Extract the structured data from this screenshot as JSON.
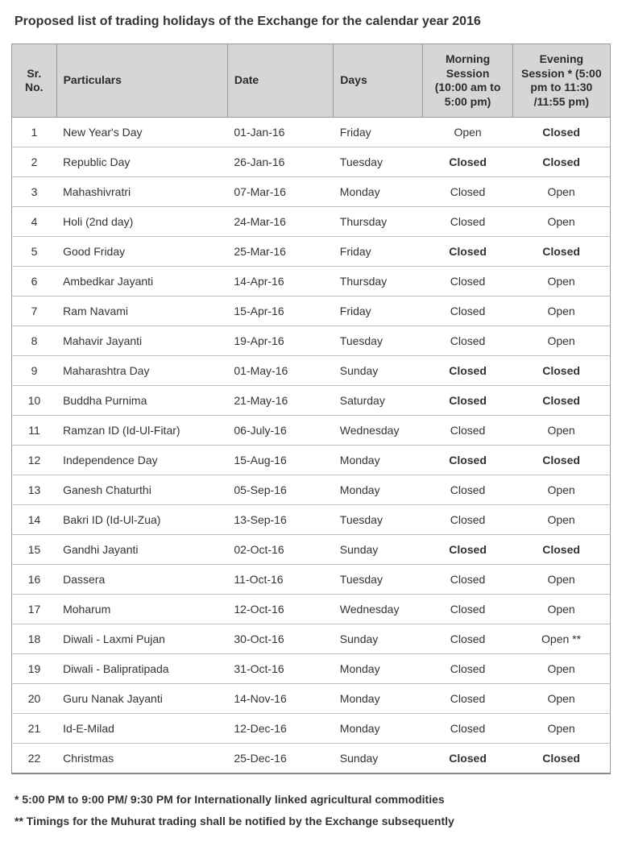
{
  "title": "Proposed list of trading holidays of the Exchange for the calendar year 2016",
  "columns": {
    "sr": "Sr. No.",
    "particulars": "Particulars",
    "date": "Date",
    "days": "Days",
    "morning": "Morning Session (10:00 am to 5:00 pm)",
    "evening": "Evening Session * (5:00 pm to 11:30 /11:55 pm)"
  },
  "rows": [
    {
      "sr": "1",
      "particulars": "New Year's Day",
      "date": "01-Jan-16",
      "days": "Friday",
      "morning": "Open",
      "morning_bold": false,
      "evening": "Closed",
      "evening_bold": true
    },
    {
      "sr": "2",
      "particulars": "Republic Day",
      "date": "26-Jan-16",
      "days": "Tuesday",
      "morning": "Closed",
      "morning_bold": true,
      "evening": "Closed",
      "evening_bold": true
    },
    {
      "sr": "3",
      "particulars": "Mahashivratri",
      "date": "07-Mar-16",
      "days": "Monday",
      "morning": "Closed",
      "morning_bold": false,
      "evening": "Open",
      "evening_bold": false
    },
    {
      "sr": "4",
      "particulars": "Holi (2nd day)",
      "date": "24-Mar-16",
      "days": "Thursday",
      "morning": "Closed",
      "morning_bold": false,
      "evening": "Open",
      "evening_bold": false
    },
    {
      "sr": "5",
      "particulars": "Good Friday",
      "date": "25-Mar-16",
      "days": "Friday",
      "morning": "Closed",
      "morning_bold": true,
      "evening": "Closed",
      "evening_bold": true
    },
    {
      "sr": "6",
      "particulars": "Ambedkar Jayanti",
      "date": "14-Apr-16",
      "days": "Thursday",
      "morning": "Closed",
      "morning_bold": false,
      "evening": "Open",
      "evening_bold": false
    },
    {
      "sr": "7",
      "particulars": "Ram Navami",
      "date": "15-Apr-16",
      "days": "Friday",
      "morning": "Closed",
      "morning_bold": false,
      "evening": "Open",
      "evening_bold": false
    },
    {
      "sr": "8",
      "particulars": "Mahavir Jayanti",
      "date": "19-Apr-16",
      "days": "Tuesday",
      "morning": "Closed",
      "morning_bold": false,
      "evening": "Open",
      "evening_bold": false
    },
    {
      "sr": "9",
      "particulars": "Maharashtra Day",
      "date": "01-May-16",
      "days": "Sunday",
      "morning": "Closed",
      "morning_bold": true,
      "evening": "Closed",
      "evening_bold": true
    },
    {
      "sr": "10",
      "particulars": "Buddha Purnima",
      "date": "21-May-16",
      "days": "Saturday",
      "morning": "Closed",
      "morning_bold": true,
      "evening": "Closed",
      "evening_bold": true
    },
    {
      "sr": "11",
      "particulars": "Ramzan ID (Id-Ul-Fitar)",
      "date": "06-July-16",
      "days": "Wednesday",
      "morning": "Closed",
      "morning_bold": false,
      "evening": "Open",
      "evening_bold": false
    },
    {
      "sr": "12",
      "particulars": "Independence Day",
      "date": "15-Aug-16",
      "days": "Monday",
      "morning": "Closed",
      "morning_bold": true,
      "evening": "Closed",
      "evening_bold": true
    },
    {
      "sr": "13",
      "particulars": "Ganesh Chaturthi",
      "date": "05-Sep-16",
      "days": "Monday",
      "morning": "Closed",
      "morning_bold": false,
      "evening": "Open",
      "evening_bold": false
    },
    {
      "sr": "14",
      "particulars": "Bakri ID (Id-Ul-Zua)",
      "date": "13-Sep-16",
      "days": "Tuesday",
      "morning": "Closed",
      "morning_bold": false,
      "evening": "Open",
      "evening_bold": false
    },
    {
      "sr": "15",
      "particulars": "Gandhi Jayanti",
      "date": "02-Oct-16",
      "days": "Sunday",
      "morning": "Closed",
      "morning_bold": true,
      "evening": "Closed",
      "evening_bold": true
    },
    {
      "sr": "16",
      "particulars": "Dassera",
      "date": "11-Oct-16",
      "days": "Tuesday",
      "morning": "Closed",
      "morning_bold": false,
      "evening": "Open",
      "evening_bold": false
    },
    {
      "sr": "17",
      "particulars": "Moharum",
      "date": "12-Oct-16",
      "days": "Wednesday",
      "morning": "Closed",
      "morning_bold": false,
      "evening": "Open",
      "evening_bold": false
    },
    {
      "sr": "18",
      "particulars": "Diwali - Laxmi Pujan",
      "date": "30-Oct-16",
      "days": "Sunday",
      "morning": "Closed",
      "morning_bold": false,
      "evening": "Open **",
      "evening_bold": false
    },
    {
      "sr": "19",
      "particulars": "Diwali - Balipratipada",
      "date": "31-Oct-16",
      "days": "Monday",
      "morning": "Closed",
      "morning_bold": false,
      "evening": "Open",
      "evening_bold": false
    },
    {
      "sr": "20",
      "particulars": "Guru Nanak Jayanti",
      "date": "14-Nov-16",
      "days": "Monday",
      "morning": "Closed",
      "morning_bold": false,
      "evening": "Open",
      "evening_bold": false
    },
    {
      "sr": "21",
      "particulars": "Id-E-Milad",
      "date": "12-Dec-16",
      "days": "Monday",
      "morning": "Closed",
      "morning_bold": false,
      "evening": "Open",
      "evening_bold": false
    },
    {
      "sr": "22",
      "particulars": "Christmas",
      "date": "25-Dec-16",
      "days": "Sunday",
      "morning": "Closed",
      "morning_bold": true,
      "evening": "Closed",
      "evening_bold": true
    }
  ],
  "footnotes": [
    "* 5:00 PM to 9:00 PM/ 9:30 PM for Internationally linked agricultural commodities",
    "** Timings for the Muhurat trading shall be notified by the Exchange subsequently"
  ]
}
